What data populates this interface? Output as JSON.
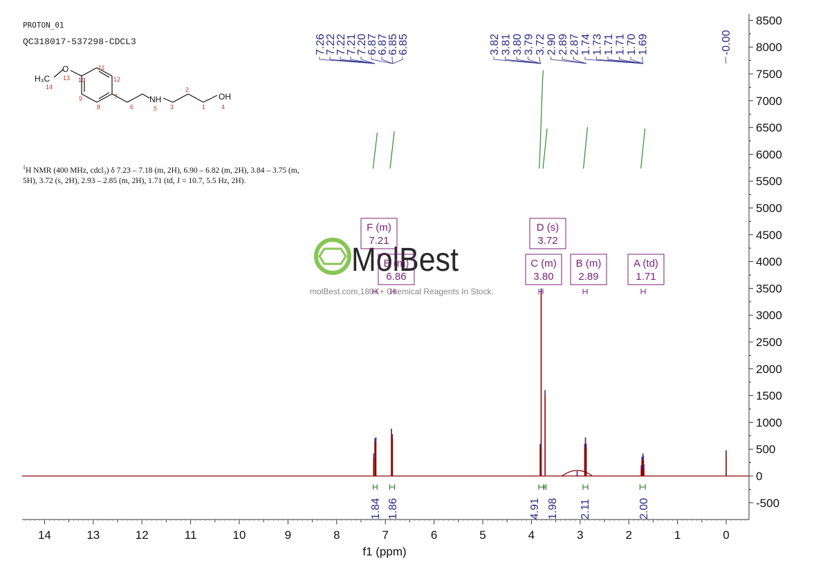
{
  "header": {
    "experiment": "PROTON_01",
    "sample": "QC318017-537298-CDCL3"
  },
  "nmr_description": {
    "lead": "1",
    "text": "H NMR (400 MHz, cdcl₃) δ 7.23 – 7.18 (m, 2H), 6.90 – 6.82 (m, 2H), 3.84 – 3.75 (m, 5H), 3.72 (s, 2H), 2.93 – 2.85 (m, 2H), 1.71 (td, J = 10.7, 5.5 Hz, 2H)."
  },
  "watermark": {
    "brand": "MolBest",
    "tagline": "molBest.com,180K+ Chemical Reagents In Stock."
  },
  "structure": {
    "atoms": [
      "H₃C",
      "O",
      "NH",
      "OH"
    ],
    "numbers": [
      "14",
      "13",
      "10",
      "11",
      "12",
      "7",
      "9",
      "8",
      "6",
      "5",
      "3",
      "2",
      "1",
      "4"
    ]
  },
  "colors": {
    "spectrum": "#8b0000",
    "peak_label": "#2a2a88",
    "integral": "#2e8b2e",
    "multiplet": "#7a1f7a"
  },
  "chart_data": {
    "type": "line",
    "xlabel": "f1 (ppm)",
    "ylabel": "",
    "x_range": [
      14.5,
      -0.45
    ],
    "y_range": [
      -800,
      8600
    ],
    "x_ticks": [
      14,
      13,
      12,
      11,
      10,
      9,
      8,
      7,
      6,
      5,
      4,
      3,
      2,
      1,
      0
    ],
    "y_ticks": [
      -500,
      0,
      500,
      1000,
      1500,
      2000,
      2500,
      3000,
      3500,
      4000,
      4500,
      5000,
      5500,
      6000,
      6500,
      7000,
      7500,
      8000,
      8500
    ],
    "peaks": [
      {
        "ppm": 7.24,
        "height": 420
      },
      {
        "ppm": 7.215,
        "height": 700
      },
      {
        "ppm": 7.195,
        "height": 720
      },
      {
        "ppm": 6.875,
        "height": 880
      },
      {
        "ppm": 6.855,
        "height": 780
      },
      {
        "ppm": 3.82,
        "height": 600
      },
      {
        "ppm": 3.8,
        "height": 3500
      },
      {
        "ppm": 3.72,
        "height": 1600
      },
      {
        "ppm": 3.06,
        "height": 90
      },
      {
        "ppm": 2.905,
        "height": 600
      },
      {
        "ppm": 2.89,
        "height": 720
      },
      {
        "ppm": 2.875,
        "height": 600
      },
      {
        "ppm": 1.745,
        "height": 200
      },
      {
        "ppm": 1.73,
        "height": 360
      },
      {
        "ppm": 1.71,
        "height": 420
      },
      {
        "ppm": 1.7,
        "height": 380
      },
      {
        "ppm": 1.69,
        "height": 220
      },
      {
        "ppm": 0.0,
        "height": 480
      }
    ],
    "peak_labels": {
      "group1": [
        "7.26",
        "7.22",
        "7.22",
        "7.21",
        "7.20",
        "6.87",
        "6.87",
        "6.85",
        "6.85"
      ],
      "group2": [
        "3.82",
        "3.81",
        "3.80",
        "3.79",
        "3.72",
        "2.90",
        "2.89",
        "2.87",
        "1.74",
        "1.73",
        "1.71",
        "1.71",
        "1.70",
        "1.69"
      ],
      "group3": [
        "-0.00"
      ]
    },
    "multiplets": [
      {
        "id": "F",
        "type": "m",
        "ppm": "7.21"
      },
      {
        "id": "E",
        "type": "m",
        "ppm": "6.86"
      },
      {
        "id": "D",
        "type": "s",
        "ppm": "3.72"
      },
      {
        "id": "C",
        "type": "m",
        "ppm": "3.80"
      },
      {
        "id": "B",
        "type": "m",
        "ppm": "2.89"
      },
      {
        "id": "A",
        "type": "td",
        "ppm": "1.71"
      }
    ],
    "integrals": [
      {
        "from": 7.25,
        "to": 7.17,
        "value": "1.84"
      },
      {
        "from": 6.91,
        "to": 6.81,
        "value": "1.86"
      },
      {
        "from": 3.85,
        "to": 3.75,
        "value": "4.91"
      },
      {
        "from": 3.74,
        "to": 3.7,
        "value": "1.98"
      },
      {
        "from": 2.94,
        "to": 2.84,
        "value": "2.11"
      },
      {
        "from": 1.77,
        "to": 1.66,
        "value": "2.00"
      }
    ]
  }
}
